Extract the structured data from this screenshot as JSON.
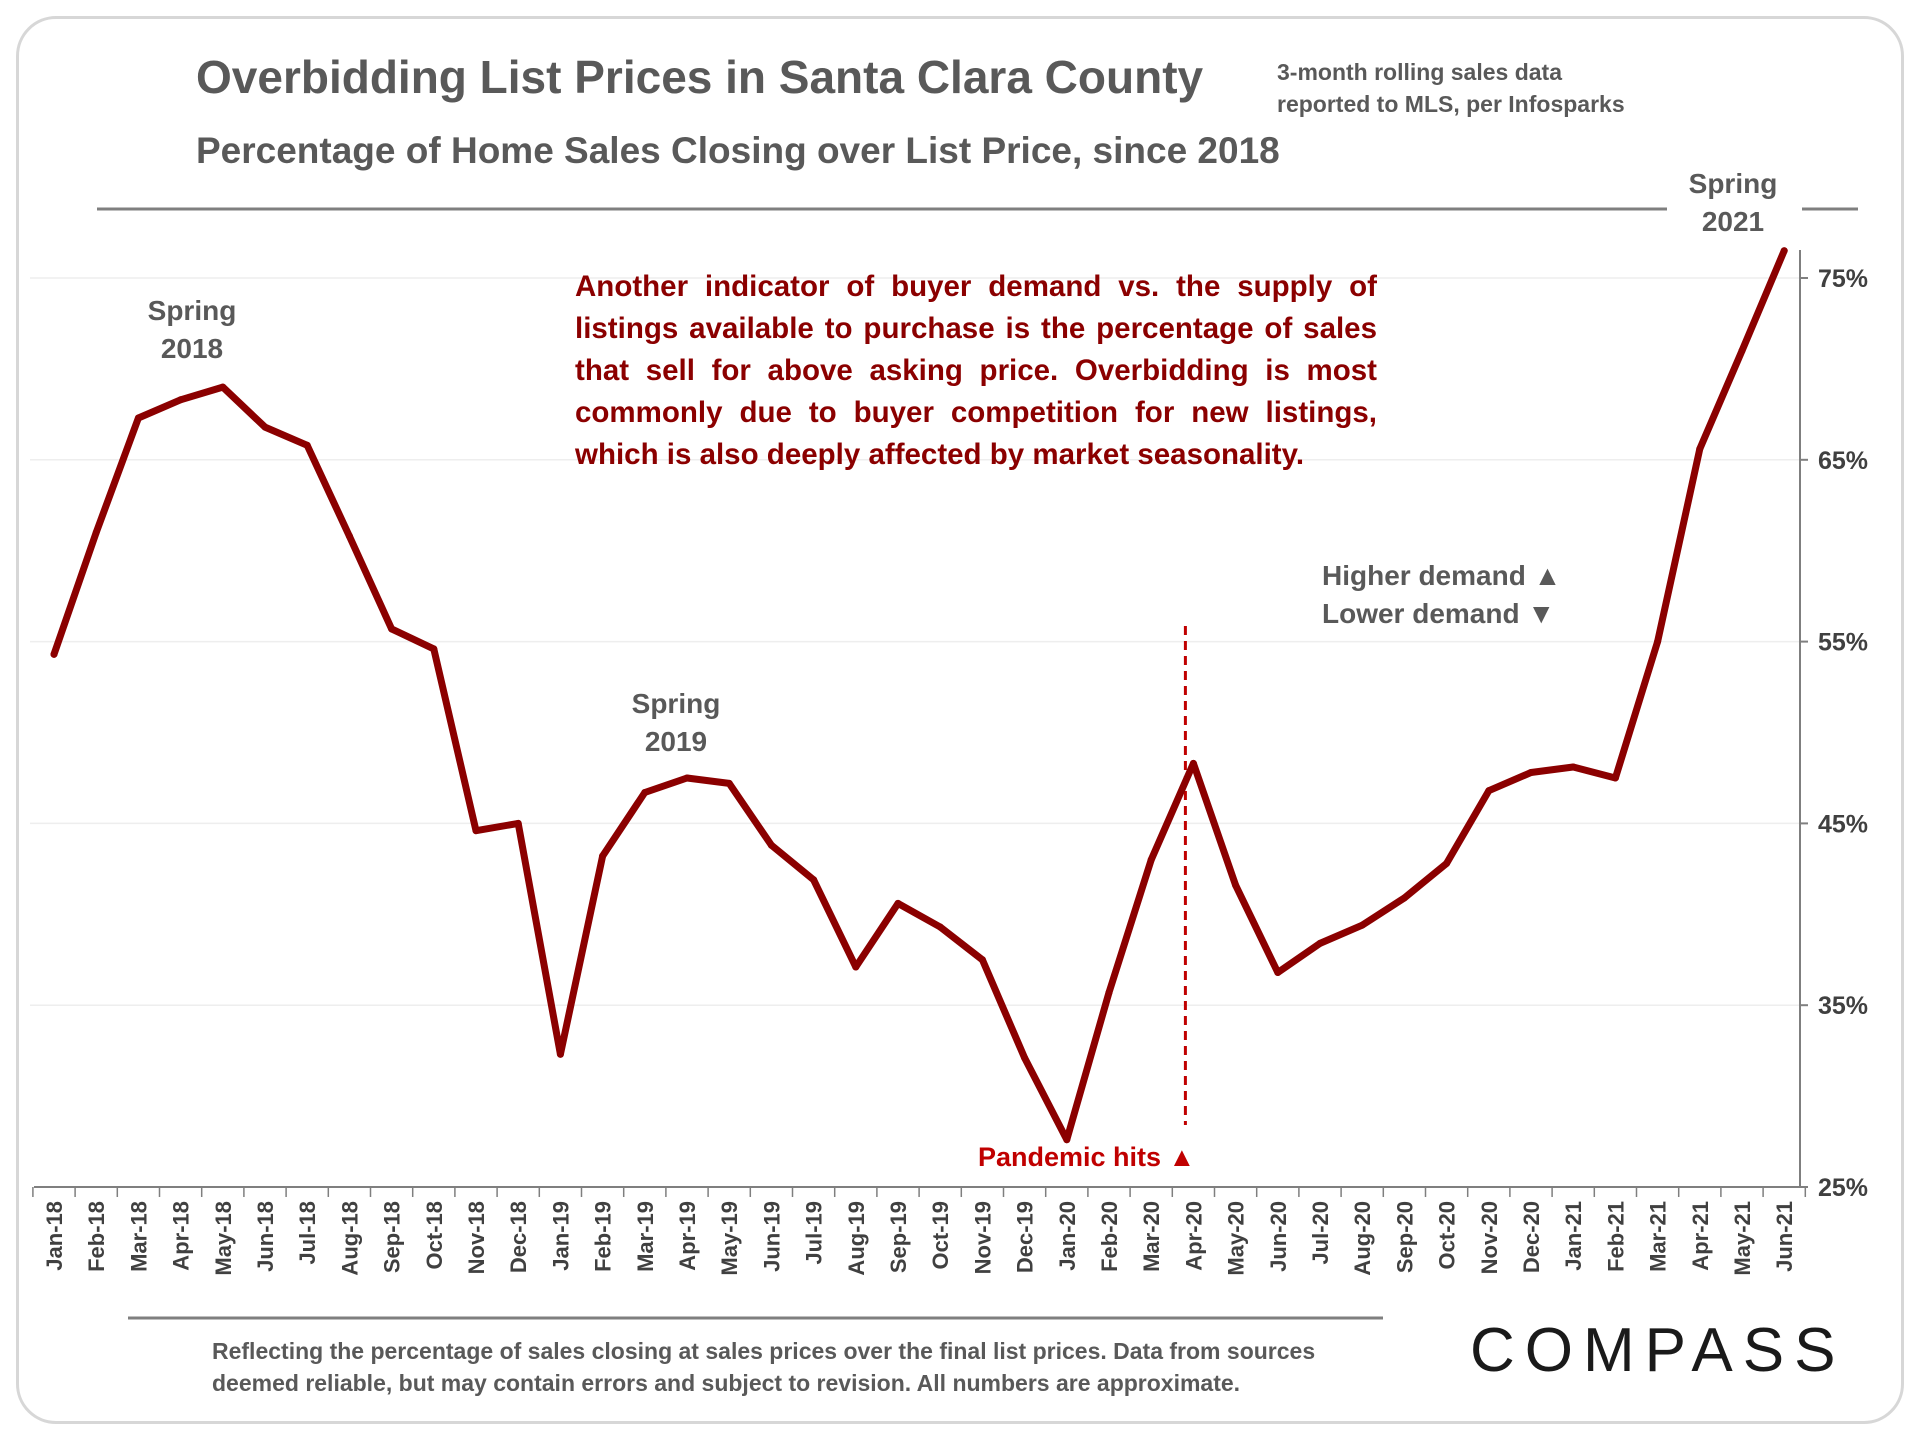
{
  "header": {
    "title": "Overbidding List Prices in Santa Clara County",
    "subtitle": "Percentage of  Home Sales Closing over List Price, since 2018",
    "source_line1": "3-month rolling sales data",
    "source_line2": "reported to MLS, per Infosparks"
  },
  "annotation": {
    "text": "Another indicator of buyer demand vs. the supply of listings available to purchase is the percentage of sales that sell for above asking price. Overbidding is most commonly due to buyer competition for new listings, which is also deeply affected by market seasonality."
  },
  "labels": {
    "spring2018_line1": "Spring",
    "spring2018_line2": "2018",
    "spring2019_line1": "Spring",
    "spring2019_line2": "2019",
    "spring2021_line1": "Spring",
    "spring2021_line2": "2021",
    "higher_demand": "Higher demand ▲",
    "lower_demand": "Lower demand ▼",
    "pandemic": "Pandemic hits ▲"
  },
  "footer": {
    "note": "Reflecting the percentage of sales closing at sales prices over the final list prices. Data from sources deemed reliable, but may contain errors and subject to revision. All numbers are approximate.",
    "logo": "COMPASS"
  },
  "colors": {
    "line": "#8b0000",
    "text": "#595959",
    "pandemic": "#c00000"
  },
  "chart_data": {
    "type": "line",
    "title": "Overbidding List Prices in Santa Clara County",
    "xlabel": "",
    "ylabel": "",
    "ylim": [
      25,
      76.5
    ],
    "yticks": [
      25,
      35,
      45,
      55,
      65,
      75
    ],
    "ytick_labels": [
      "25%",
      "35%",
      "45%",
      "55%",
      "65%",
      "75%"
    ],
    "axis_side": "right",
    "categories": [
      "Jan-18",
      "Feb-18",
      "Mar-18",
      "Apr-18",
      "May-18",
      "Jun-18",
      "Jul-18",
      "Aug-18",
      "Sep-18",
      "Oct-18",
      "Nov-18",
      "Dec-18",
      "Jan-19",
      "Feb-19",
      "Mar-19",
      "Apr-19",
      "May-19",
      "Jun-19",
      "Jul-19",
      "Aug-19",
      "Sep-19",
      "Oct-19",
      "Nov-19",
      "Dec-19",
      "Jan-20",
      "Feb-20",
      "Mar-20",
      "Apr-20",
      "May-20",
      "Jun-20",
      "Jul-20",
      "Aug-20",
      "Sep-20",
      "Oct-20",
      "Nov-20",
      "Dec-20",
      "Jan-21",
      "Feb-21",
      "Mar-21",
      "Apr-21",
      "May-21",
      "Jun-21"
    ],
    "series": [
      {
        "name": "Percentage of sales closing over list price",
        "values": [
          54.3,
          61.0,
          67.3,
          68.3,
          69.0,
          66.8,
          65.8,
          60.8,
          55.7,
          54.6,
          44.6,
          45.0,
          32.3,
          43.2,
          46.7,
          47.5,
          47.2,
          43.8,
          41.9,
          37.1,
          40.6,
          39.3,
          37.5,
          32.1,
          27.6,
          35.7,
          43.0,
          48.3,
          41.6,
          36.8,
          38.4,
          39.4,
          40.9,
          42.8,
          46.8,
          47.8,
          48.1,
          47.5,
          55.0,
          65.6,
          71.0,
          76.5
        ]
      }
    ],
    "annotations": [
      {
        "text": "Spring 2018",
        "at": "May-18"
      },
      {
        "text": "Spring 2019",
        "at": "Apr-19"
      },
      {
        "text": "Spring 2021",
        "at": "Jun-21"
      },
      {
        "text": "Pandemic hits",
        "at": "Apr-20"
      }
    ],
    "grid": true,
    "legend": "none"
  }
}
